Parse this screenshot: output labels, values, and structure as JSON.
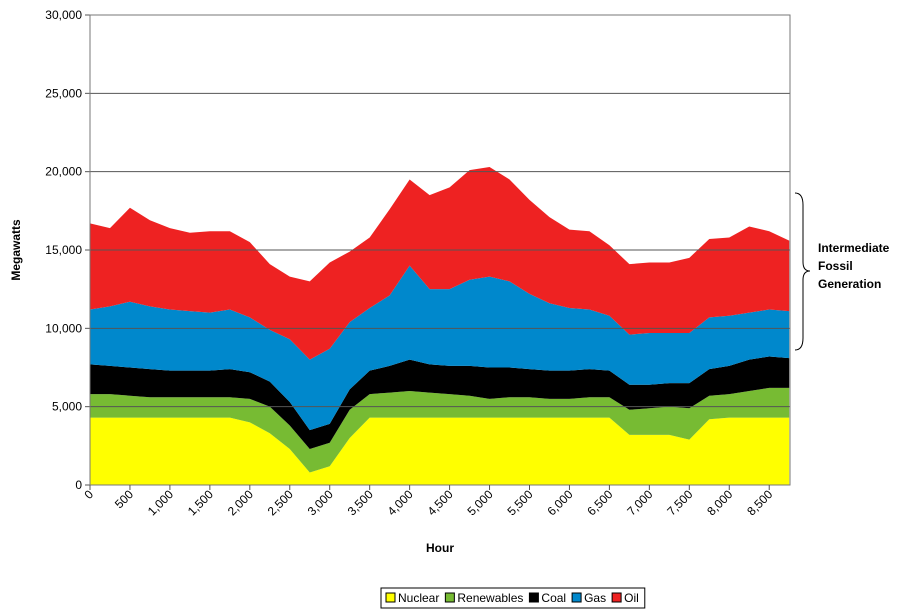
{
  "chart_data": {
    "type": "stacked_area",
    "y_label": "Megawatts",
    "x_label": "Hour",
    "annotation": [
      "Intermediate",
      "Fossil",
      "Generation"
    ],
    "x": [
      0,
      250,
      500,
      750,
      1000,
      1250,
      1500,
      1750,
      2000,
      2250,
      2500,
      2750,
      3000,
      3250,
      3500,
      3750,
      4000,
      4250,
      4500,
      4750,
      5000,
      5250,
      5500,
      5750,
      6000,
      6250,
      6500,
      6750,
      7000,
      7250,
      7500,
      7750,
      8000,
      8250,
      8500,
      8750
    ],
    "series": [
      {
        "name": "Nuclear",
        "color": "#ffff00",
        "values": [
          4300,
          4300,
          4300,
          4300,
          4300,
          4300,
          4300,
          4300,
          4000,
          3300,
          2300,
          800,
          1200,
          3000,
          4300,
          4300,
          4300,
          4300,
          4300,
          4300,
          4300,
          4300,
          4300,
          4300,
          4300,
          4300,
          4300,
          3200,
          3200,
          3200,
          2900,
          4200,
          4300,
          4300,
          4300,
          4300
        ]
      },
      {
        "name": "Renewables",
        "color": "#77bb33",
        "values": [
          1500,
          1500,
          1400,
          1300,
          1300,
          1300,
          1300,
          1300,
          1500,
          1700,
          1500,
          1500,
          1500,
          1800,
          1500,
          1600,
          1700,
          1600,
          1500,
          1400,
          1200,
          1300,
          1300,
          1200,
          1200,
          1300,
          1300,
          1600,
          1700,
          1800,
          2000,
          1500,
          1500,
          1700,
          1900,
          1900
        ]
      },
      {
        "name": "Coal",
        "color": "#000000",
        "values": [
          1900,
          1800,
          1800,
          1800,
          1700,
          1700,
          1700,
          1800,
          1700,
          1600,
          1500,
          1200,
          1200,
          1300,
          1500,
          1700,
          2000,
          1800,
          1800,
          1900,
          2000,
          1900,
          1800,
          1800,
          1800,
          1800,
          1700,
          1600,
          1500,
          1500,
          1600,
          1700,
          1800,
          2000,
          2000,
          1900
        ]
      },
      {
        "name": "Gas",
        "color": "#0088cc",
        "values": [
          3500,
          3800,
          4200,
          4000,
          3900,
          3800,
          3700,
          3800,
          3500,
          3300,
          4000,
          4500,
          4800,
          4300,
          4000,
          4500,
          6000,
          4800,
          4900,
          5500,
          5800,
          5500,
          4800,
          4300,
          4000,
          3800,
          3500,
          3200,
          3300,
          3200,
          3200,
          3300,
          3200,
          3000,
          3000,
          3000
        ]
      },
      {
        "name": "Oil",
        "color": "#ee2222",
        "values": [
          5500,
          5000,
          6000,
          5500,
          5200,
          5000,
          5200,
          5000,
          4800,
          4200,
          4000,
          5000,
          5500,
          4500,
          4500,
          5500,
          5500,
          6000,
          6500,
          7000,
          7000,
          6500,
          6000,
          5500,
          5000,
          5000,
          4500,
          4500,
          4500,
          4500,
          4800,
          5000,
          5000,
          5500,
          5000,
          4500
        ]
      }
    ],
    "xlim": [
      0,
      8760
    ],
    "ylim": [
      0,
      30000
    ],
    "xticks": [
      0,
      500,
      {
        "value": 1000,
        "label": "1,000"
      },
      {
        "value": 1500,
        "label": "1,500"
      },
      {
        "value": 2000,
        "label": "2,000"
      },
      {
        "value": 2500,
        "label": "2,500"
      },
      {
        "value": 3000,
        "label": "3,000"
      },
      {
        "value": 3500,
        "label": "3,500"
      },
      {
        "value": 4000,
        "label": "4,000"
      },
      {
        "value": 4500,
        "label": "4,500"
      },
      {
        "value": 5000,
        "label": "5,000"
      },
      {
        "value": 5500,
        "label": "5,500"
      },
      {
        "value": 6000,
        "label": "6,000"
      },
      {
        "value": 6500,
        "label": "6,500"
      },
      {
        "value": 7000,
        "label": "7,000"
      },
      {
        "value": 7500,
        "label": "7,500"
      },
      {
        "value": 8000,
        "label": "8,000"
      },
      {
        "value": 8500,
        "label": "8,500"
      }
    ],
    "yticks": [
      0,
      {
        "value": 5000,
        "label": "5,000"
      },
      {
        "value": 10000,
        "label": "10,000"
      },
      {
        "value": 15000,
        "label": "15,000"
      },
      {
        "value": 20000,
        "label": "20,000"
      },
      {
        "value": 25000,
        "label": "25,000"
      },
      {
        "value": 30000,
        "label": "30,000"
      }
    ],
    "grid": true,
    "legend": "bottom"
  }
}
